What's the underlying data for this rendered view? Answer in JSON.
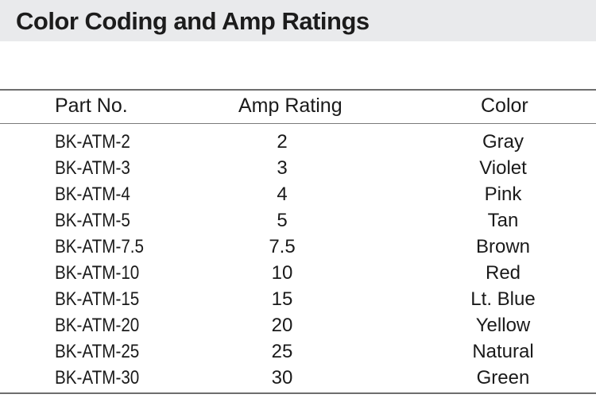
{
  "title": "Color Coding and Amp Ratings",
  "table": {
    "headers": {
      "part": "Part No.",
      "amp": "Amp Rating",
      "color": "Color"
    },
    "rows": [
      {
        "part": "BK-ATM-2",
        "amp": "2",
        "color": "Gray"
      },
      {
        "part": "BK-ATM-3",
        "amp": "3",
        "color": "Violet"
      },
      {
        "part": "BK-ATM-4",
        "amp": "4",
        "color": "Pink"
      },
      {
        "part": "BK-ATM-5",
        "amp": "5",
        "color": "Tan"
      },
      {
        "part": "BK-ATM-7.5",
        "amp": "7.5",
        "color": "Brown"
      },
      {
        "part": "BK-ATM-10",
        "amp": "10",
        "color": "Red"
      },
      {
        "part": "BK-ATM-15",
        "amp": "15",
        "color": "Lt. Blue"
      },
      {
        "part": "BK-ATM-20",
        "amp": "20",
        "color": "Yellow"
      },
      {
        "part": "BK-ATM-25",
        "amp": "25",
        "color": "Natural"
      },
      {
        "part": "BK-ATM-30",
        "amp": "30",
        "color": "Green"
      }
    ]
  }
}
